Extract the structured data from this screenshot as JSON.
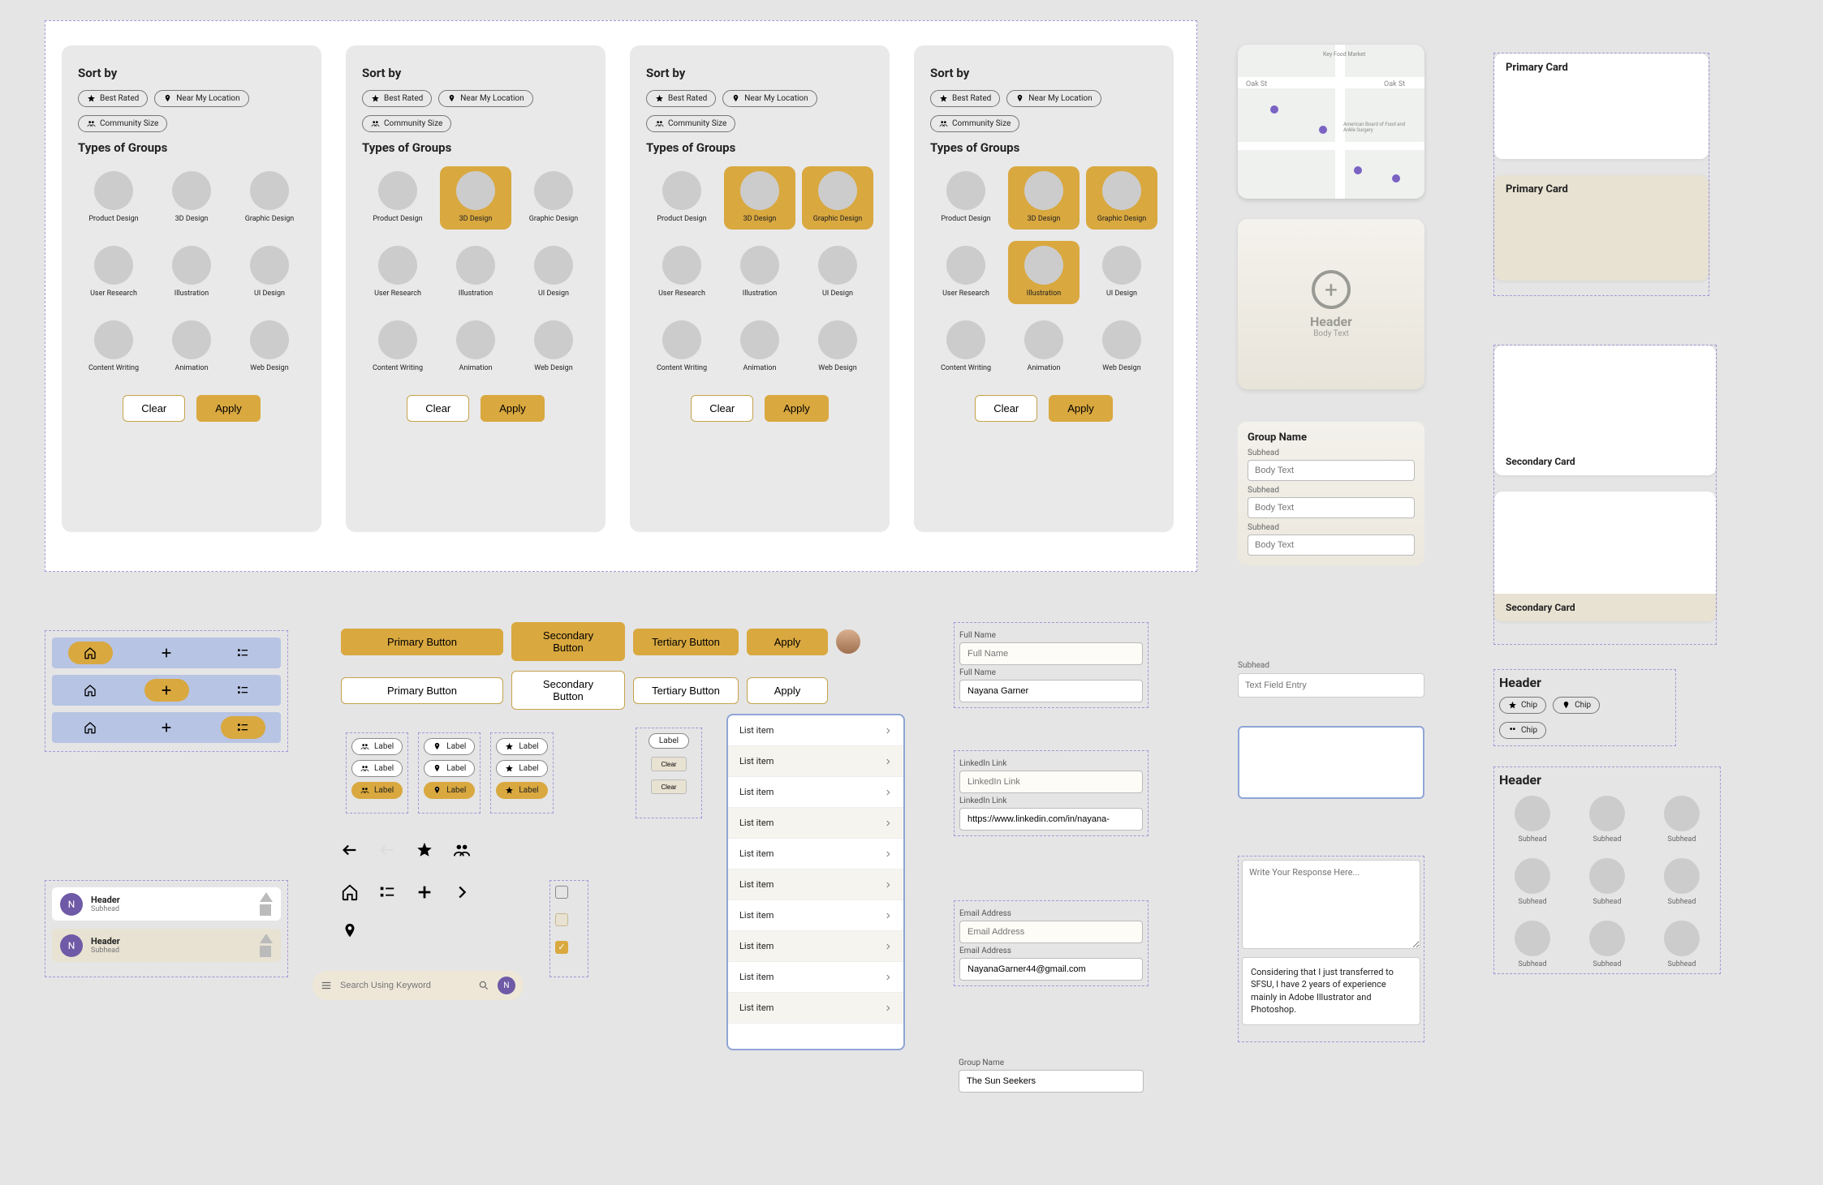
{
  "filters": {
    "sort_label": "Sort by",
    "types_label": "Types of Groups",
    "chips": {
      "best_rated": "Best Rated",
      "near_me": "Near My Location",
      "community_size": "Community Size"
    },
    "clear": "Clear",
    "apply": "Apply",
    "categories": [
      "Product Design",
      "3D Design",
      "Graphic Design",
      "User Research",
      "Illustration",
      "UI Design",
      "Content Writing",
      "Animation",
      "Web Design"
    ],
    "selected": [
      [],
      [
        1
      ],
      [
        1,
        2
      ],
      [
        1,
        2,
        4
      ]
    ]
  },
  "map": {
    "street1": "Oak St",
    "street2": "Oak St",
    "poi1": "Key Food Market",
    "poi2": "American Board of Food and Ankle Surgery"
  },
  "placeholder_card": {
    "header": "Header",
    "body": "Body Text"
  },
  "primary_cards": {
    "a": "Primary Card",
    "b": "Primary Card"
  },
  "group_form": {
    "title": "Group Name",
    "subhead": "Subhead",
    "body_ph": "Body Text"
  },
  "secondary_cards": {
    "a": "Secondary Card",
    "b": "Secondary Card"
  },
  "buttons": {
    "primary": "Primary Button",
    "secondary": "Secondary Button",
    "tertiary": "Tertiary Button",
    "apply": "Apply"
  },
  "label_chip": "Label",
  "small_clear": "Clear",
  "list_item": "List item",
  "header_cards": {
    "header": "Header",
    "subhead": "Subhead",
    "initial": "N"
  },
  "search_placeholder": "Search Using Keyword",
  "fields": {
    "full_name_label": "Full Name",
    "full_name_ph": "Full Name",
    "full_name_val": "Nayana Garner",
    "linkedin_label": "LinkedIn Link",
    "linkedin_ph": "LinkedIn Link",
    "linkedin_val": "https://www.linkedin.com/in/nayana-",
    "email_label": "Email Address",
    "email_ph": "Email Address",
    "email_val": "NayanaGarner44@gmail.com",
    "group_name_label": "Group Name",
    "group_name_val": "The Sun Seekers"
  },
  "subhead_field": {
    "label": "Subhead",
    "ph": "Text Field Entry"
  },
  "textarea": {
    "ph": "Write Your Response Here...",
    "val": "Considering that I just transferred to SFSU, I have 2 years of experience mainly in Adobe Illustrator and Photoshop."
  },
  "header_chips": {
    "title": "Header",
    "chip": "Chip"
  },
  "subhead_grid": {
    "title": "Header",
    "label": "Subhead"
  },
  "colors": {
    "gold": "#d9a83f",
    "blue_nav": "#b7c4e3",
    "purple": "#6e5aa6",
    "list_border": "#8fa5d6",
    "dashed": "#a896d8"
  }
}
